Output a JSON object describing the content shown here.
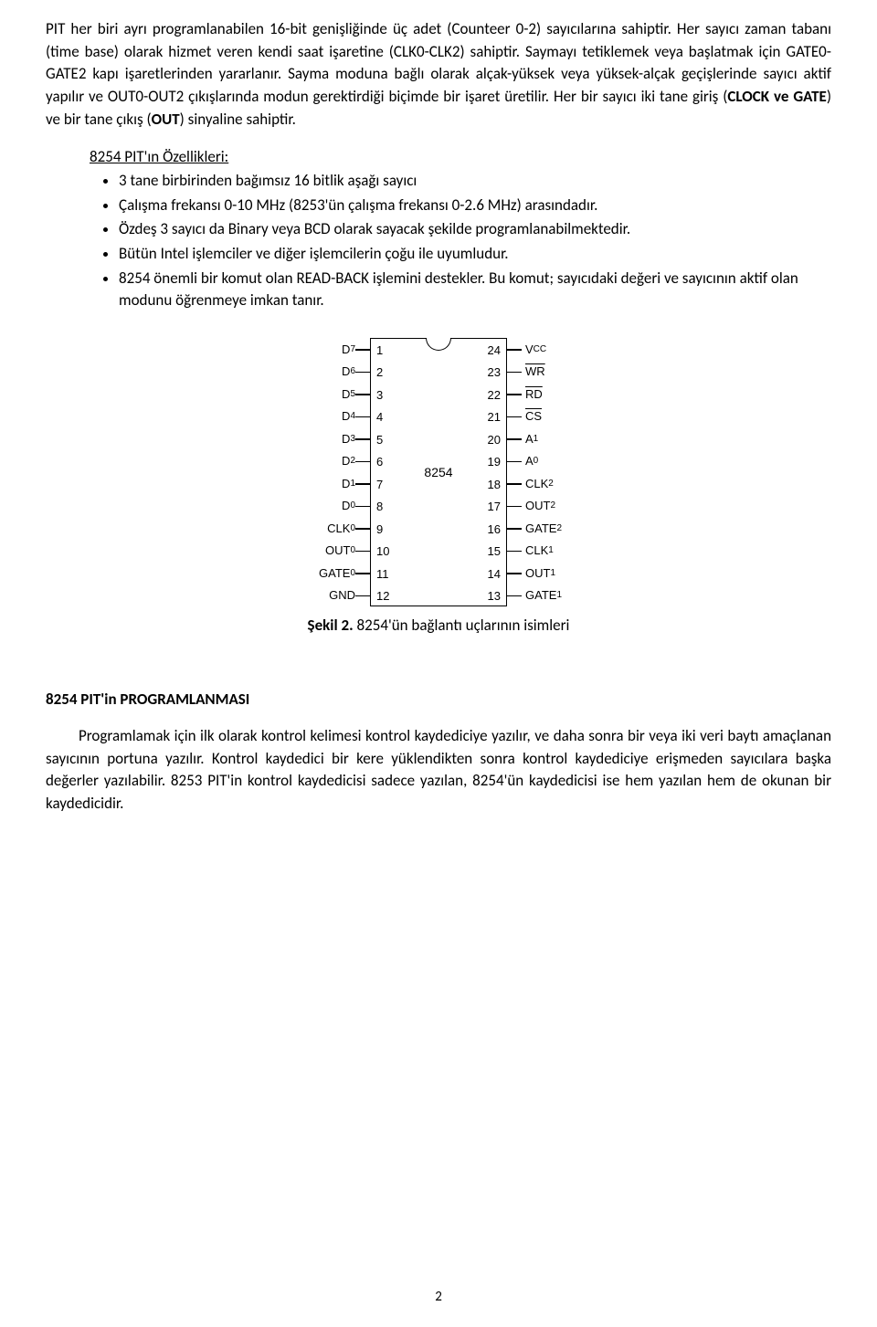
{
  "para1_pre": "PIT her biri ayrı programlanabilen 16-bit genişliğinde üç adet (Counteer 0-2) sayıcılarına sahiptir. Her sayıcı zaman tabanı (time base) olarak hizmet veren kendi saat işaretine (CLK0-CLK2) sahiptir. Saymayı tetiklemek veya başlatmak için GATE0-GATE2 kapı işaretlerinden yararlanır. Sayma moduna bağlı olarak alçak-yüksek veya yüksek-alçak geçişlerinde sayıcı aktif yapılır ve OUT0-OUT2 çıkışlarında modun gerektirdiği biçimde bir işaret üretilir. Her bir sayıcı iki tane giriş (",
  "para1_b1": "CLOCK ve GATE",
  "para1_mid": ") ve bir tane çıkış (",
  "para1_b2": "OUT",
  "para1_post": ") sinyaline sahiptir.",
  "features_title": "8254 PIT'ın Özellikleri:",
  "features": [
    "3 tane birbirinden bağımsız 16 bitlik aşağı sayıcı",
    "Çalışma frekansı 0-10 MHz (8253'ün çalışma frekansı 0-2.6 MHz) arasındadır.",
    "Özdeş 3 sayıcı da Binary veya BCD olarak sayacak şekilde programlanabilmektedir.",
    "Bütün Intel işlemciler ve diğer işlemcilerin çoğu ile uyumludur.",
    "8254 önemli bir komut olan READ-BACK işlemini destekler. Bu komut; sayıcıdaki değeri ve  sayıcının aktif olan modunu öğrenmeye imkan tanır."
  ],
  "chip": {
    "name": "8254",
    "left_labels": [
      "D<sub>7</sub>",
      "D<sub>6</sub>",
      "D<sub>5</sub>",
      "D<sub>4</sub>",
      "D<sub>3</sub>",
      "D<sub>2</sub>",
      "D<sub>1</sub>",
      "D<sub>0</sub>",
      "CLK<sub>0</sub>",
      "OUT<sub>0</sub>",
      "GATE<sub>0</sub>",
      "GND"
    ],
    "left_pins": [
      "1",
      "2",
      "3",
      "4",
      "5",
      "6",
      "7",
      "8",
      "9",
      "10",
      "11",
      "12"
    ],
    "right_pins": [
      "24",
      "23",
      "22",
      "21",
      "20",
      "19",
      "18",
      "17",
      "16",
      "15",
      "14",
      "13"
    ],
    "right_labels": [
      "V<sub>CC</sub>",
      "<span class=\"overline\">WR</span>",
      "<span class=\"overline\">RD</span>",
      "<span class=\"overline\">CS</span>",
      "A<sub>1</sub>",
      "A<sub>0</sub>",
      "CLK<sub>2</sub>",
      "OUT<sub>2</sub>",
      "GATE<sub>2</sub>",
      "CLK<sub>1</sub>",
      "OUT<sub>1</sub>",
      "GATE<sub>1</sub>"
    ]
  },
  "caption_b": "Şekil 2.",
  "caption_rest": " 8254'ün bağlantı uçlarının isimleri",
  "section_h": "8254 PIT'in PROGRAMLANMASI",
  "para2": "Programlamak için ilk olarak kontrol kelimesi kontrol kaydediciye yazılır, ve daha sonra bir veya iki veri baytı amaçlanan sayıcının portuna yazılır. Kontrol kaydedici bir kere yüklendikten sonra kontrol kaydediciye erişmeden sayıcılara başka değerler yazılabilir. 8253 PIT'in kontrol kaydedicisi sadece yazılan, 8254'ün kaydedicisi ise hem yazılan hem de okunan bir kaydedicidir.",
  "pagenum": "2"
}
